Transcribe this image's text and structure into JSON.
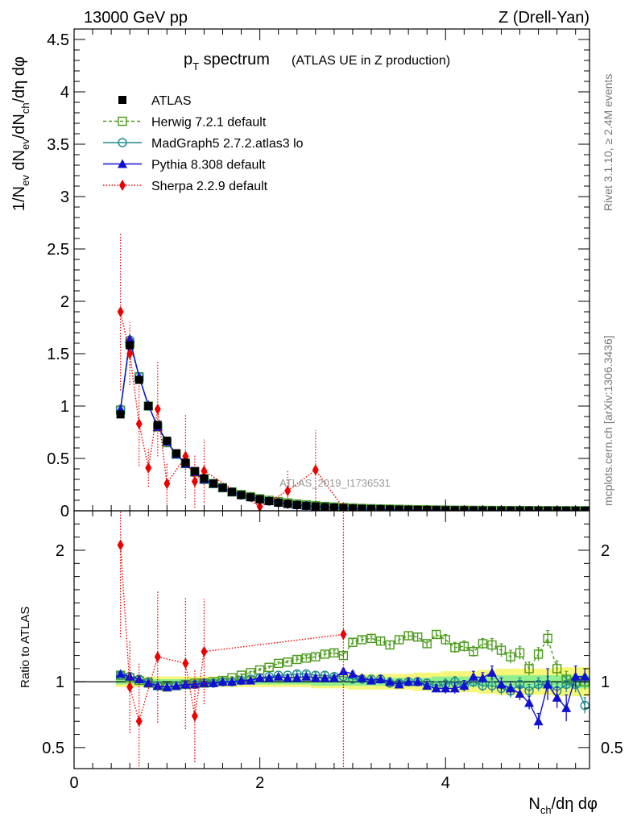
{
  "header": {
    "left": "13000 GeV pp",
    "right": "Z (Drell-Yan)"
  },
  "side": {
    "rivet": "Rivet 3.1.10, ≥ 2.4M events",
    "site": "mcplots.cern.ch [arXiv:1306.3436]"
  },
  "analysis_tag": "ATLAS_2019_I1736531",
  "colors": {
    "ATLAS": "#000000",
    "Herwig": "#4a9a1a",
    "MadGraph": "#1f8a8a",
    "Pythia": "#1010d0",
    "Sherpa": "#ee0000",
    "band_inner": "#8ff08f",
    "band_outer": "#f6f67a"
  },
  "chart_data": [
    {
      "type": "line",
      "panel": "main",
      "title": "p_T spectrum (ATLAS UE in Z production)",
      "title_main": "p",
      "title_sub": "T",
      "title_word": " spectrum",
      "title_paren": "(ATLAS UE in Z production)",
      "ylabel": "1/N_ev dN_ev/dN_ch/dη dφ",
      "ylim": [
        0,
        4.6
      ],
      "yticks": [
        "0",
        "0.5",
        "1",
        "1.5",
        "2",
        "2.5",
        "3",
        "3.5",
        "4",
        "4.5"
      ],
      "x": [
        0.5,
        0.6,
        0.7,
        0.8,
        0.9,
        1.0,
        1.1,
        1.2,
        1.3,
        1.4,
        1.5,
        1.6,
        1.7,
        1.8,
        1.9,
        2.0,
        2.1,
        2.2,
        2.3,
        2.4,
        2.5,
        2.6,
        2.7,
        2.8,
        2.9,
        3.0,
        3.1,
        3.2,
        3.3,
        3.4,
        3.5,
        3.6,
        3.7,
        3.8,
        3.9,
        4.0,
        4.1,
        4.2,
        4.3,
        4.4,
        4.5,
        4.6,
        4.7,
        4.8,
        4.9,
        5.0,
        5.1,
        5.2,
        5.3,
        5.4,
        5.5
      ],
      "series": [
        {
          "name": "ATLAS",
          "marker": "square-filled",
          "values": [
            0.92,
            1.58,
            1.25,
            1.0,
            0.82,
            0.67,
            0.55,
            0.46,
            0.38,
            0.31,
            0.26,
            0.22,
            0.18,
            0.15,
            0.13,
            0.11,
            0.092,
            0.078,
            0.066,
            0.056,
            0.048,
            0.041,
            0.035,
            0.03,
            0.026,
            0.022,
            0.019,
            0.017,
            0.015,
            0.013,
            0.011,
            0.0095,
            0.0083,
            0.0072,
            0.0063,
            0.0055,
            0.0048,
            0.0042,
            0.0037,
            0.0032,
            0.0028,
            0.0025,
            0.0022,
            0.0019,
            0.0017,
            0.0015,
            0.0013,
            0.0012,
            0.001,
            0.0009,
            0.0008
          ]
        },
        {
          "name": "Herwig 7.2.1 default",
          "marker": "square-open",
          "dash": "dashed",
          "values": [
            0.96,
            1.6,
            1.28,
            1.0,
            0.8,
            0.65,
            0.54,
            0.45,
            0.37,
            0.3,
            0.26,
            0.22,
            0.18,
            0.155,
            0.135,
            0.115,
            0.1,
            0.088,
            0.076,
            0.065,
            0.056,
            0.048,
            0.042,
            0.036,
            0.031,
            0.027,
            0.023,
            0.02,
            0.018,
            0.016,
            0.014,
            0.012,
            0.01,
            0.009,
            0.008,
            0.007,
            0.006,
            0.0053,
            0.0047,
            0.0041,
            0.0036,
            0.0032,
            0.0028,
            0.0025,
            0.0022,
            0.002,
            0.0018,
            0.0016,
            0.0013,
            0.0011,
            0.001
          ]
        },
        {
          "name": "MadGraph5 2.7.2.atlas3 lo",
          "marker": "circle-open",
          "values": [
            0.97,
            1.63,
            1.28,
            1.0,
            0.81,
            0.66,
            0.54,
            0.45,
            0.37,
            0.3,
            0.26,
            0.22,
            0.18,
            0.15,
            0.13,
            0.11,
            0.093,
            0.079,
            0.067,
            0.057,
            0.049,
            0.042,
            0.036,
            0.031,
            0.026,
            0.022,
            0.019,
            0.017,
            0.015,
            0.013,
            0.011,
            0.0095,
            0.0083,
            0.0072,
            0.0063,
            0.0055,
            0.0048,
            0.0042,
            0.0037,
            0.0032,
            0.0028,
            0.0025,
            0.0022,
            0.0019,
            0.0017,
            0.0015,
            0.0013,
            0.0012,
            0.001,
            0.0009,
            0.0008
          ]
        },
        {
          "name": "Pythia 8.308 default",
          "marker": "triangle-filled",
          "values": [
            0.97,
            1.64,
            1.28,
            1.01,
            0.8,
            0.66,
            0.54,
            0.45,
            0.37,
            0.3,
            0.26,
            0.22,
            0.18,
            0.15,
            0.13,
            0.11,
            0.093,
            0.079,
            0.066,
            0.056,
            0.048,
            0.041,
            0.035,
            0.03,
            0.026,
            0.022,
            0.019,
            0.017,
            0.015,
            0.013,
            0.011,
            0.0095,
            0.0083,
            0.0072,
            0.0063,
            0.0055,
            0.0048,
            0.0042,
            0.0037,
            0.0032,
            0.0028,
            0.0025,
            0.0022,
            0.0019,
            0.0017,
            0.0015,
            0.0013,
            0.0012,
            0.001,
            0.0009,
            0.0008
          ]
        },
        {
          "name": "Sherpa 2.2.9 default",
          "marker": "diamond-filled",
          "dash": "dotted",
          "x": [
            0.5,
            0.6,
            0.7,
            0.8,
            0.9,
            1.0,
            1.2,
            1.3,
            1.4,
            2.0,
            2.3,
            2.6,
            2.9
          ],
          "values": [
            1.9,
            1.5,
            0.83,
            0.41,
            0.97,
            0.26,
            0.52,
            0.28,
            0.38,
            0.04,
            0.19,
            0.39,
            0.03
          ],
          "errors": [
            0.75,
            0.3,
            0.4,
            0.18,
            0.45,
            0.2,
            0.4,
            0.25,
            0.3,
            0.1,
            0.2,
            0.38,
            0.05
          ]
        }
      ]
    },
    {
      "type": "line",
      "panel": "ratio",
      "ylabel": "Ratio to ATLAS",
      "xlabel": "N_ch/dη dφ",
      "xlim": [
        0,
        5.55
      ],
      "xticks": [
        "0",
        "2",
        "4"
      ],
      "ylim": [
        0.34,
        2.3
      ],
      "yticks": [
        "0.5",
        "1",
        "2"
      ],
      "x": [
        0.5,
        0.6,
        0.7,
        0.8,
        0.9,
        1.0,
        1.1,
        1.2,
        1.3,
        1.4,
        1.5,
        1.6,
        1.7,
        1.8,
        1.9,
        2.0,
        2.1,
        2.2,
        2.3,
        2.4,
        2.5,
        2.6,
        2.7,
        2.8,
        2.9,
        3.0,
        3.1,
        3.2,
        3.3,
        3.4,
        3.5,
        3.6,
        3.7,
        3.8,
        3.9,
        4.0,
        4.1,
        4.2,
        4.3,
        4.4,
        4.5,
        4.6,
        4.7,
        4.8,
        4.9,
        5.0,
        5.1,
        5.2,
        5.3,
        5.4,
        5.5
      ],
      "band_inner": [
        0.02,
        0.02,
        0.02,
        0.02,
        0.02,
        0.02,
        0.02,
        0.02,
        0.02,
        0.02,
        0.02,
        0.02,
        0.02,
        0.02,
        0.02,
        0.02,
        0.02,
        0.02,
        0.02,
        0.02,
        0.02,
        0.03,
        0.03,
        0.03,
        0.03,
        0.03,
        0.03,
        0.03,
        0.03,
        0.03,
        0.03,
        0.03,
        0.03,
        0.03,
        0.04,
        0.04,
        0.04,
        0.04,
        0.04,
        0.04,
        0.04,
        0.05,
        0.05,
        0.05,
        0.05,
        0.05,
        0.05,
        0.05,
        0.05,
        0.05,
        0.05
      ],
      "band_outer": [
        0.04,
        0.04,
        0.04,
        0.04,
        0.04,
        0.04,
        0.04,
        0.04,
        0.04,
        0.04,
        0.04,
        0.04,
        0.04,
        0.04,
        0.04,
        0.04,
        0.04,
        0.04,
        0.04,
        0.04,
        0.04,
        0.05,
        0.05,
        0.05,
        0.05,
        0.06,
        0.06,
        0.06,
        0.06,
        0.06,
        0.06,
        0.06,
        0.07,
        0.07,
        0.07,
        0.08,
        0.08,
        0.08,
        0.08,
        0.09,
        0.09,
        0.1,
        0.1,
        0.1,
        0.1,
        0.1,
        0.1,
        0.11,
        0.11,
        0.11,
        0.11
      ],
      "series": [
        {
          "name": "Herwig 7.2.1 default",
          "values": [
            1.05,
            1.03,
            1.01,
            0.99,
            0.97,
            0.96,
            0.97,
            0.98,
            0.99,
            0.99,
            1.0,
            1.01,
            1.03,
            1.05,
            1.07,
            1.09,
            1.11,
            1.14,
            1.15,
            1.17,
            1.18,
            1.19,
            1.21,
            1.22,
            1.2,
            1.3,
            1.32,
            1.33,
            1.31,
            1.28,
            1.32,
            1.35,
            1.34,
            1.29,
            1.36,
            1.32,
            1.26,
            1.27,
            1.23,
            1.29,
            1.28,
            1.24,
            1.19,
            1.22,
            1.1,
            1.21,
            1.33,
            1.1,
            1.02,
            1.0,
            1.0
          ],
          "errors": [
            0.01,
            0.01,
            0.01,
            0.01,
            0.01,
            0.01,
            0.01,
            0.01,
            0.01,
            0.01,
            0.01,
            0.01,
            0.01,
            0.01,
            0.01,
            0.01,
            0.01,
            0.01,
            0.01,
            0.02,
            0.02,
            0.02,
            0.02,
            0.02,
            0.02,
            0.02,
            0.02,
            0.02,
            0.03,
            0.03,
            0.03,
            0.03,
            0.03,
            0.03,
            0.03,
            0.04,
            0.04,
            0.04,
            0.04,
            0.04,
            0.05,
            0.05,
            0.05,
            0.05,
            0.05,
            0.05,
            0.06,
            0.06,
            0.06,
            0.06,
            0.06
          ]
        },
        {
          "name": "MadGraph5 2.7.2.atlas3 lo",
          "values": [
            1.05,
            1.04,
            1.02,
            1.0,
            0.97,
            0.96,
            0.97,
            0.98,
            0.98,
            0.99,
            0.99,
            1.0,
            1.0,
            1.01,
            1.02,
            1.03,
            1.04,
            1.05,
            1.05,
            1.06,
            1.06,
            1.05,
            1.05,
            1.04,
            1.04,
            1.02,
            1.02,
            1.02,
            1.02,
            0.99,
            0.99,
            1.0,
            1.0,
            0.99,
            0.97,
            0.98,
            1.0,
            0.97,
            1.0,
            0.97,
            0.97,
            0.95,
            0.93,
            0.98,
            0.93,
            0.98,
            0.98,
            0.93,
            0.98,
            0.98,
            0.82
          ],
          "errors": [
            0.01,
            0.01,
            0.01,
            0.01,
            0.01,
            0.01,
            0.01,
            0.01,
            0.01,
            0.01,
            0.01,
            0.01,
            0.01,
            0.01,
            0.01,
            0.01,
            0.01,
            0.01,
            0.01,
            0.02,
            0.02,
            0.02,
            0.02,
            0.02,
            0.02,
            0.02,
            0.02,
            0.02,
            0.03,
            0.03,
            0.03,
            0.03,
            0.03,
            0.03,
            0.03,
            0.04,
            0.04,
            0.04,
            0.04,
            0.04,
            0.05,
            0.05,
            0.05,
            0.05,
            0.05,
            0.05,
            0.06,
            0.06,
            0.06,
            0.06,
            0.06
          ]
        },
        {
          "name": "Pythia 8.308 default",
          "values": [
            1.06,
            1.04,
            1.02,
            0.99,
            0.97,
            0.96,
            0.97,
            0.98,
            0.98,
            0.99,
            0.99,
            1.0,
            1.0,
            1.01,
            1.01,
            1.03,
            1.03,
            1.04,
            1.03,
            1.03,
            1.04,
            1.03,
            1.03,
            1.03,
            1.08,
            1.06,
            1.03,
            1.01,
            1.02,
            1.0,
            0.98,
            1.0,
            1.0,
            0.97,
            0.95,
            0.95,
            0.95,
            0.97,
            1.04,
            1.03,
            1.07,
            0.98,
            0.95,
            0.91,
            0.84,
            0.7,
            0.98,
            0.88,
            0.8,
            1.04,
            1.04
          ],
          "errors": [
            0.01,
            0.01,
            0.01,
            0.01,
            0.01,
            0.01,
            0.01,
            0.01,
            0.01,
            0.01,
            0.01,
            0.01,
            0.01,
            0.01,
            0.01,
            0.01,
            0.01,
            0.01,
            0.01,
            0.02,
            0.02,
            0.02,
            0.02,
            0.02,
            0.02,
            0.02,
            0.02,
            0.02,
            0.03,
            0.03,
            0.03,
            0.03,
            0.03,
            0.03,
            0.03,
            0.04,
            0.04,
            0.04,
            0.04,
            0.04,
            0.05,
            0.05,
            0.05,
            0.05,
            0.05,
            0.06,
            0.12,
            0.08,
            0.1,
            0.08,
            0.06
          ]
        },
        {
          "name": "Sherpa 2.2.9 default",
          "x": [
            0.5,
            0.6,
            0.7,
            0.9,
            1.2,
            1.3,
            1.4,
            2.9
          ],
          "values": [
            2.04,
            0.96,
            0.7,
            1.19,
            1.14,
            0.74,
            1.23,
            1.36
          ],
          "errors": [
            0.7,
            0.35,
            0.45,
            0.5,
            0.5,
            0.35,
            0.4,
            1.5
          ]
        }
      ]
    }
  ]
}
